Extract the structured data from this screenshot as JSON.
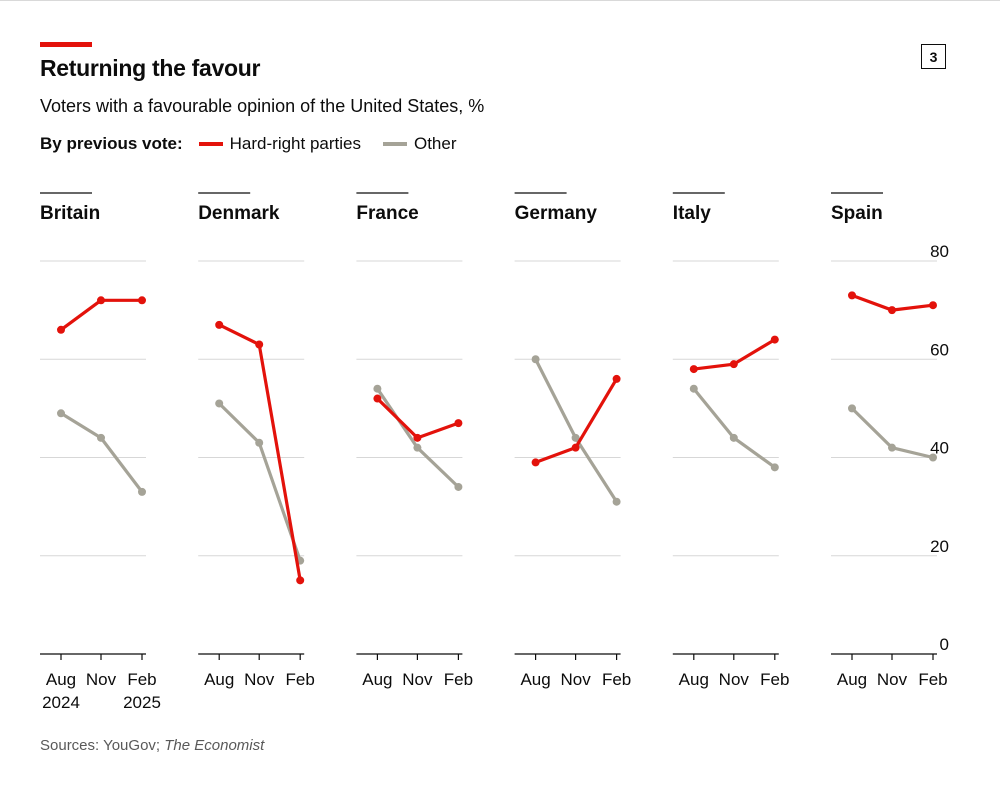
{
  "header": {
    "title": "Returning the favour",
    "subtitle": "Voters with a favourable opinion of the United States, %",
    "badge": "3"
  },
  "legend": {
    "label": "By previous vote:",
    "items": [
      {
        "name": "Hard-right parties",
        "color": "#e3120b"
      },
      {
        "name": "Other",
        "color": "#a5a397"
      }
    ]
  },
  "source": {
    "prefix": "Sources: YouGov; ",
    "publication": "The Economist"
  },
  "chart_data": {
    "type": "line",
    "title": "Returning the favour",
    "subtitle": "Voters with a favourable opinion of the United States, %",
    "categories": [
      "Aug",
      "Nov",
      "Feb"
    ],
    "year_labels": [
      "2024",
      "",
      "2025"
    ],
    "ylim": [
      0,
      80
    ],
    "yticks": [
      0,
      20,
      40,
      60,
      80
    ],
    "grid": true,
    "panels": [
      {
        "country": "Britain",
        "series": [
          {
            "name": "Hard-right parties",
            "values": [
              66,
              72,
              72
            ]
          },
          {
            "name": "Other",
            "values": [
              49,
              44,
              33
            ]
          }
        ]
      },
      {
        "country": "Denmark",
        "series": [
          {
            "name": "Hard-right parties",
            "values": [
              67,
              63,
              15
            ]
          },
          {
            "name": "Other",
            "values": [
              51,
              43,
              19
            ]
          }
        ]
      },
      {
        "country": "France",
        "series": [
          {
            "name": "Hard-right parties",
            "values": [
              52,
              44,
              47
            ]
          },
          {
            "name": "Other",
            "values": [
              54,
              42,
              34
            ]
          }
        ]
      },
      {
        "country": "Germany",
        "series": [
          {
            "name": "Hard-right parties",
            "values": [
              39,
              42,
              56
            ]
          },
          {
            "name": "Other",
            "values": [
              60,
              44,
              31
            ]
          }
        ]
      },
      {
        "country": "Italy",
        "series": [
          {
            "name": "Hard-right parties",
            "values": [
              58,
              59,
              64
            ]
          },
          {
            "name": "Other",
            "values": [
              54,
              44,
              38
            ]
          }
        ]
      },
      {
        "country": "Spain",
        "series": [
          {
            "name": "Hard-right parties",
            "values": [
              73,
              70,
              71
            ]
          },
          {
            "name": "Other",
            "values": [
              50,
              42,
              40
            ]
          }
        ]
      }
    ]
  }
}
